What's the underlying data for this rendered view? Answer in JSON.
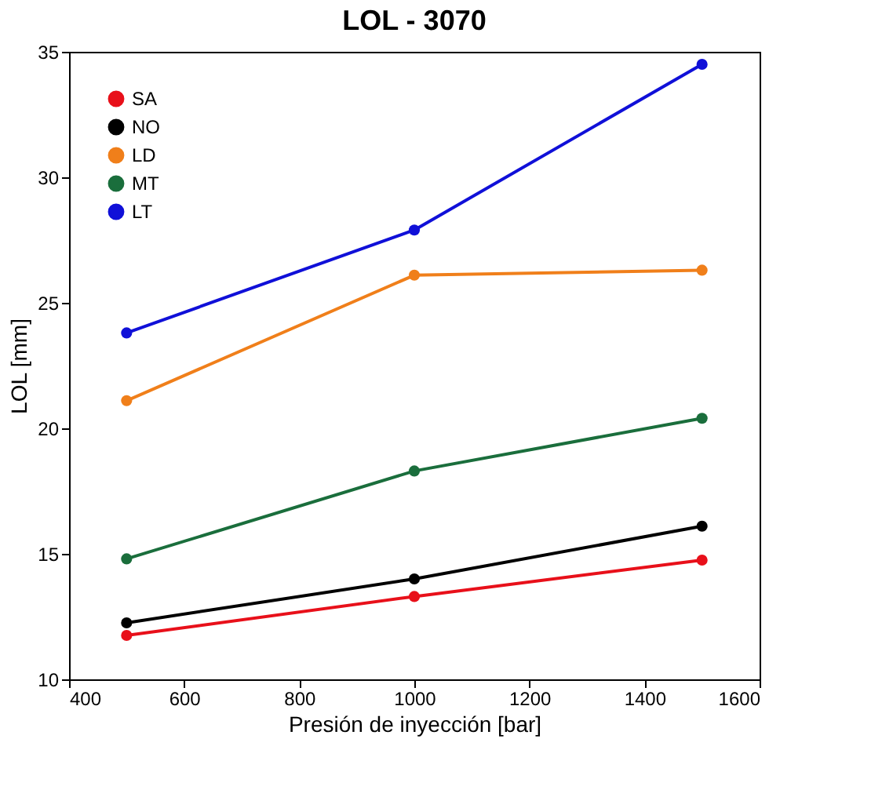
{
  "chart_data": {
    "type": "line",
    "title": "LOL - 3070",
    "xlabel": "Presión de inyección [bar]",
    "ylabel": "LOL [mm]",
    "x": [
      500,
      1000,
      1500
    ],
    "series": [
      {
        "name": "SA",
        "color": "#e8101a",
        "values": [
          11.75,
          13.3,
          14.75
        ]
      },
      {
        "name": "NO",
        "color": "#000000",
        "values": [
          12.25,
          14.0,
          16.1
        ]
      },
      {
        "name": "LD",
        "color": "#f07f1a",
        "values": [
          21.1,
          26.1,
          26.3
        ]
      },
      {
        "name": "MT",
        "color": "#1a6e3c",
        "values": [
          14.8,
          18.3,
          20.4
        ]
      },
      {
        "name": "LT",
        "color": "#1010d8",
        "values": [
          23.8,
          27.9,
          34.5
        ]
      }
    ],
    "xlim": [
      400,
      1600
    ],
    "xticks": [
      400,
      600,
      800,
      1000,
      1200,
      1400,
      1600
    ],
    "ylim": [
      10,
      35
    ],
    "yticks": [
      10,
      15,
      20,
      25,
      30,
      35
    ],
    "grid": false,
    "legend": "top left",
    "marker": "circle",
    "line_style": "solid"
  }
}
